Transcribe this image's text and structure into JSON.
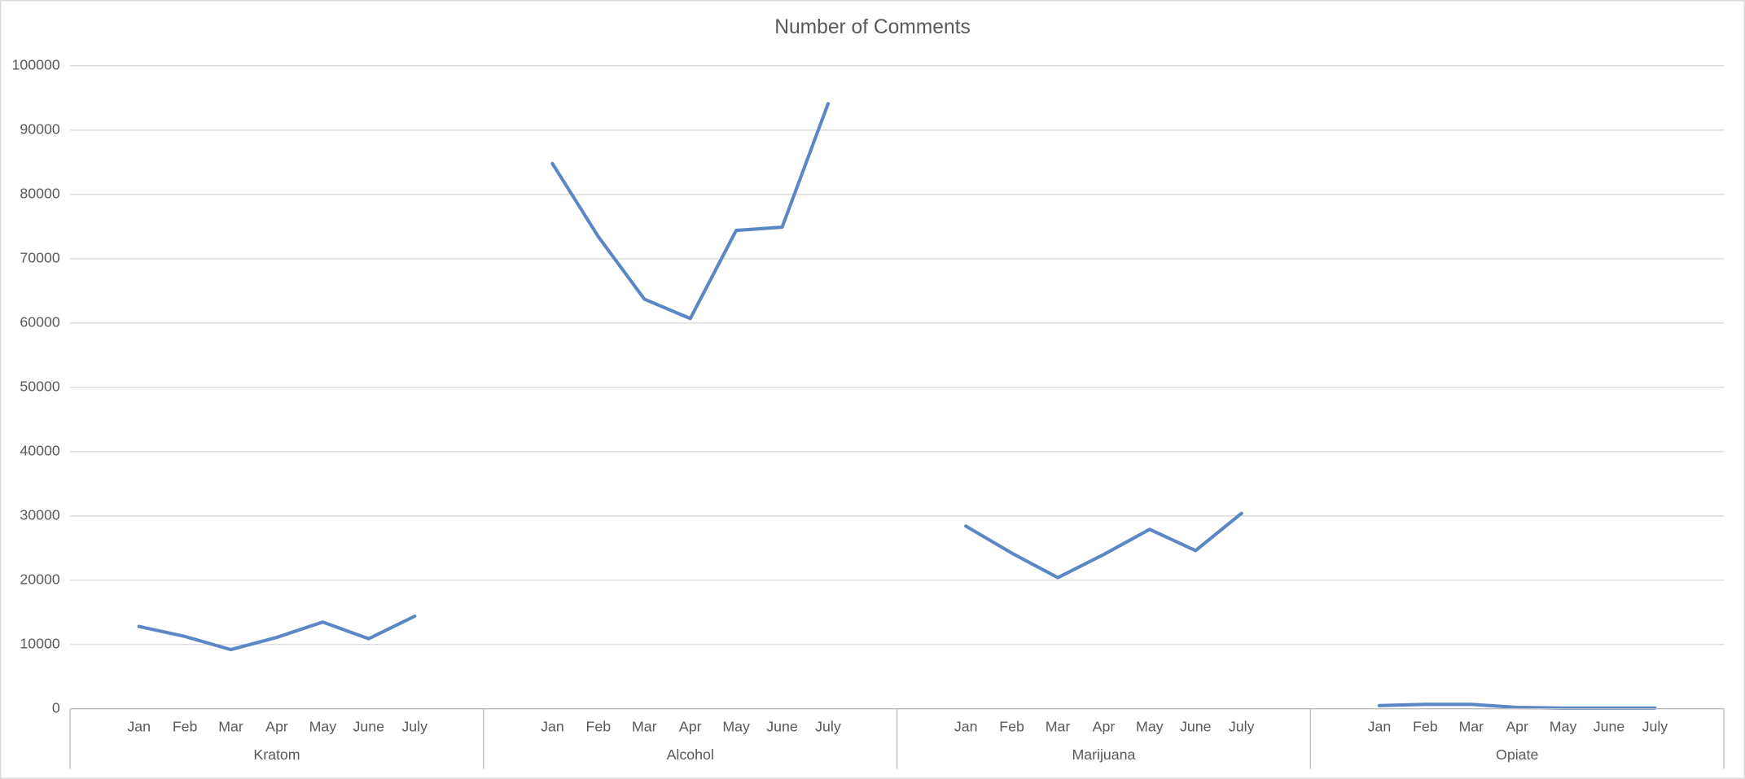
{
  "chart_data": {
    "type": "line",
    "title": "Number of Comments",
    "groups": [
      {
        "name": "Kratom",
        "categories": [
          null,
          "Jan",
          "Feb",
          "Mar",
          "Apr",
          "May",
          "June",
          "July",
          null
        ],
        "values": [
          null,
          12800,
          11250,
          9200,
          11100,
          13500,
          10900,
          14400,
          null
        ]
      },
      {
        "name": "Alcohol",
        "categories": [
          null,
          "Jan",
          "Feb",
          "Mar",
          "Apr",
          "May",
          "June",
          "July",
          null
        ],
        "values": [
          null,
          84800,
          73400,
          63700,
          60700,
          74400,
          74900,
          94100,
          null
        ]
      },
      {
        "name": "Marijuana",
        "categories": [
          null,
          "Jan",
          "Feb",
          "Mar",
          "Apr",
          "May",
          "June",
          "July",
          null
        ],
        "values": [
          null,
          28400,
          24200,
          20400,
          24000,
          27900,
          24600,
          30400,
          null
        ]
      },
      {
        "name": "Opiate",
        "categories": [
          null,
          "Jan",
          "Feb",
          "Mar",
          "Apr",
          "May",
          "June",
          "July",
          null
        ],
        "values": [
          null,
          500,
          700,
          700,
          200,
          100,
          100,
          100,
          null
        ]
      }
    ],
    "color": "#5b87c5",
    "ylim": [
      0,
      100000
    ],
    "yticks": [
      0,
      10000,
      20000,
      30000,
      40000,
      50000,
      60000,
      70000,
      80000,
      90000,
      100000
    ],
    "grid": true
  }
}
